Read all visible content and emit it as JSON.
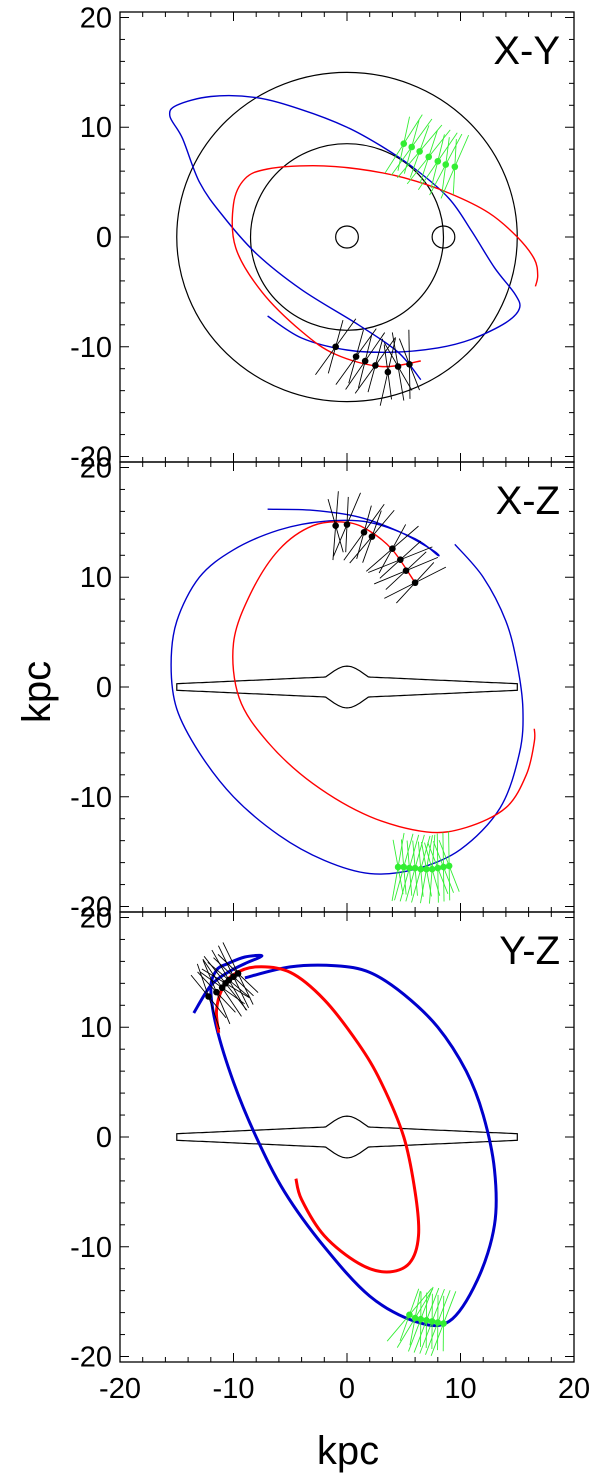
{
  "chart_data": {
    "type": "line",
    "shared_x_range": [
      -20,
      20
    ],
    "xlabel": "kpc",
    "ylabel": "kpc",
    "xticks": [
      "-20",
      "-10",
      "0",
      "10",
      "20"
    ],
    "yticks": [
      "20",
      "10",
      "0",
      "-10",
      "-20"
    ],
    "colors": {
      "axis": "#000000",
      "red_orbit": "#ff0000",
      "blue_orbit": "#0000cc",
      "green_obs": "#33ee33",
      "black_obs": "#000000"
    },
    "panels": [
      {
        "label": "X-Y",
        "x_quantity": "X",
        "y_quantity": "Y",
        "ylim": [
          -20.5,
          20.5
        ],
        "reference_shapes": {
          "circles": [
            {
              "cx": 0,
              "cy": 0,
              "r": 15
            },
            {
              "cx": 0,
              "cy": 0,
              "r": 8.5
            },
            {
              "cx": 0,
              "cy": 0,
              "r": 1,
              "label": "galactic center"
            },
            {
              "cx": 8.5,
              "cy": 0,
              "r": 1,
              "label": "sun"
            }
          ]
        },
        "red_orbit": [
          [
            6.5,
            -11.3
          ],
          [
            3,
            -11.8
          ],
          [
            -1,
            -10.7
          ],
          [
            -4,
            -8.6
          ],
          [
            -7.5,
            -5
          ],
          [
            -9.8,
            -1
          ],
          [
            -10,
            3
          ],
          [
            -9,
            5.3
          ],
          [
            -7,
            6.2
          ],
          [
            -3,
            6.5
          ],
          [
            1,
            6.2
          ],
          [
            5,
            5.4
          ],
          [
            9,
            4
          ],
          [
            12.5,
            2.2
          ],
          [
            15,
            0
          ],
          [
            16.5,
            -2
          ],
          [
            16.8,
            -3.5
          ],
          [
            16.6,
            -4.5
          ]
        ],
        "blue_orbit": [
          [
            -7,
            -7.2
          ],
          [
            -4,
            -9.2
          ],
          [
            0,
            -10.3
          ],
          [
            4,
            -10.5
          ],
          [
            8,
            -10.1
          ],
          [
            11,
            -9.3
          ],
          [
            14,
            -7.8
          ],
          [
            15.2,
            -6.5
          ],
          [
            14.8,
            -5.2
          ],
          [
            13,
            -2.8
          ],
          [
            11,
            0.5
          ],
          [
            9,
            3.5
          ],
          [
            6,
            6.2
          ],
          [
            3,
            8.3
          ],
          [
            0,
            10
          ],
          [
            -4,
            11.6
          ],
          [
            -8,
            12.7
          ],
          [
            -12,
            12.8
          ],
          [
            -15,
            12
          ],
          [
            -15.6,
            11
          ],
          [
            -14.5,
            9
          ],
          [
            -13,
            5
          ],
          [
            -11,
            2
          ],
          [
            -8,
            -1.5
          ],
          [
            -4,
            -4.8
          ],
          [
            1,
            -8
          ],
          [
            4.5,
            -10.5
          ],
          [
            6.5,
            -13
          ]
        ],
        "black_points": [
          [
            -1,
            -10
          ],
          [
            0.8,
            -10.9
          ],
          [
            1.6,
            -11.3
          ],
          [
            2.5,
            -11.7
          ],
          [
            3.6,
            -12.3
          ],
          [
            4.5,
            -11.8
          ],
          [
            5.5,
            -11.6
          ]
        ],
        "green_points": [
          [
            5,
            8.5
          ],
          [
            5.7,
            8.2
          ],
          [
            6.4,
            7.8
          ],
          [
            7.2,
            7.3
          ],
          [
            8,
            6.9
          ],
          [
            8.7,
            6.6
          ],
          [
            9.5,
            6.4
          ]
        ]
      },
      {
        "label": "X-Z",
        "x_quantity": "X",
        "y_quantity": "Z",
        "ylim": [
          -20.5,
          20.5
        ],
        "reference_shapes": {
          "disk_outline": {
            "half_length": 15,
            "edge_half_thickness": 0.3,
            "center_half_thickness": 1.0,
            "bulge_peak": 1.9,
            "bulge_width": 2.2
          }
        },
        "red_orbit": [
          [
            6,
            9.5
          ],
          [
            4,
            12.5
          ],
          [
            2,
            14.2
          ],
          [
            0,
            15
          ],
          [
            -3,
            14.7
          ],
          [
            -6,
            12.5
          ],
          [
            -8.5,
            8.5
          ],
          [
            -10,
            4
          ],
          [
            -9.5,
            -1
          ],
          [
            -7,
            -5
          ],
          [
            -3,
            -8.8
          ],
          [
            2,
            -11.8
          ],
          [
            7,
            -13.2
          ],
          [
            10.5,
            -12.8
          ],
          [
            14,
            -11
          ],
          [
            15.8,
            -8
          ],
          [
            16.5,
            -5
          ],
          [
            16.5,
            -3.8
          ]
        ],
        "blue_orbit": [
          [
            -7,
            16.2
          ],
          [
            -3,
            16.1
          ],
          [
            1,
            15.5
          ],
          [
            4.5,
            14.2
          ],
          [
            7.5,
            12.5
          ],
          [
            8,
            12
          ],
          [
            6,
            13.5
          ],
          [
            2,
            15
          ],
          [
            -2,
            15.1
          ],
          [
            -6,
            14.3
          ],
          [
            -10,
            12.5
          ],
          [
            -13,
            10
          ],
          [
            -15,
            6
          ],
          [
            -15.5,
            2
          ],
          [
            -15,
            -2
          ],
          [
            -13,
            -6
          ],
          [
            -10,
            -10
          ],
          [
            -6,
            -13.5
          ],
          [
            -2,
            -15.8
          ],
          [
            2,
            -17
          ],
          [
            6,
            -16.6
          ],
          [
            10,
            -14.8
          ],
          [
            13.5,
            -11
          ],
          [
            15.2,
            -6
          ],
          [
            15.5,
            -2
          ],
          [
            15,
            2
          ],
          [
            14,
            6
          ],
          [
            12,
            10
          ],
          [
            9.5,
            13
          ]
        ],
        "black_points": [
          [
            -1,
            14.7
          ],
          [
            0,
            14.8
          ],
          [
            1.5,
            14.1
          ],
          [
            2.2,
            13.7
          ],
          [
            4,
            12.6
          ],
          [
            4.7,
            11.6
          ],
          [
            5.2,
            10.6
          ],
          [
            6,
            9.5
          ]
        ],
        "green_points": [
          [
            4.5,
            -16.4
          ],
          [
            5,
            -16.4
          ],
          [
            5.5,
            -16.5
          ],
          [
            6,
            -16.5
          ],
          [
            6.5,
            -16.6
          ],
          [
            7,
            -16.6
          ],
          [
            7.5,
            -16.6
          ],
          [
            8,
            -16.5
          ],
          [
            8.5,
            -16.4
          ],
          [
            9,
            -16.3
          ]
        ]
      },
      {
        "label": "Y-Z",
        "x_quantity": "Y",
        "y_quantity": "Z",
        "ylim": [
          -20.5,
          20.5
        ],
        "reference_shapes": {
          "disk_outline": {
            "half_length": 15,
            "edge_half_thickness": 0.3,
            "center_half_thickness": 1.0,
            "bulge_peak": 1.9,
            "bulge_width": 2.2
          }
        },
        "red_orbit": [
          [
            -11.3,
            9.5
          ],
          [
            -11.5,
            11.5
          ],
          [
            -11,
            13.5
          ],
          [
            -10,
            14.8
          ],
          [
            -8,
            15.5
          ],
          [
            -5,
            15
          ],
          [
            -2,
            12.5
          ],
          [
            1,
            8.5
          ],
          [
            3,
            5
          ],
          [
            5,
            0
          ],
          [
            6,
            -5
          ],
          [
            6.3,
            -9
          ],
          [
            5.5,
            -11.5
          ],
          [
            3.5,
            -12.3
          ],
          [
            1,
            -11.5
          ],
          [
            -2,
            -9
          ],
          [
            -4,
            -5.7
          ],
          [
            -4.5,
            -3.8
          ]
        ],
        "blue_orbit": [
          [
            -13.5,
            11.3
          ],
          [
            -12,
            13.8
          ],
          [
            -10.5,
            15
          ],
          [
            -9,
            15.8
          ],
          [
            -7.5,
            16.5
          ],
          [
            -9,
            16.4
          ],
          [
            -10.5,
            15.8
          ],
          [
            -11.5,
            15.2
          ],
          [
            -12,
            13.5
          ],
          [
            -11.5,
            10
          ],
          [
            -10,
            5
          ],
          [
            -8,
            0
          ],
          [
            -5.5,
            -5
          ],
          [
            -2,
            -10
          ],
          [
            2,
            -14.5
          ],
          [
            6,
            -16.8
          ],
          [
            9,
            -16.8
          ],
          [
            11.5,
            -13
          ],
          [
            13,
            -8
          ],
          [
            13,
            -3
          ],
          [
            12,
            2
          ],
          [
            10.5,
            6
          ],
          [
            8,
            10
          ],
          [
            5,
            13
          ],
          [
            2,
            15
          ],
          [
            -1,
            15.6
          ],
          [
            -5,
            15.5
          ],
          [
            -9,
            14.5
          ]
        ],
        "black_points": [
          [
            -12.2,
            12.8
          ],
          [
            -11.5,
            13.2
          ],
          [
            -11,
            13.6
          ],
          [
            -10.7,
            14
          ],
          [
            -10.4,
            14.3
          ],
          [
            -10,
            14.6
          ],
          [
            -9.6,
            14.9
          ]
        ],
        "green_points": [
          [
            5.5,
            -16.2
          ],
          [
            6,
            -16.5
          ],
          [
            6.5,
            -16.6
          ],
          [
            7,
            -16.7
          ],
          [
            7.5,
            -16.8
          ],
          [
            8,
            -16.9
          ],
          [
            8.5,
            -17
          ]
        ]
      }
    ]
  }
}
